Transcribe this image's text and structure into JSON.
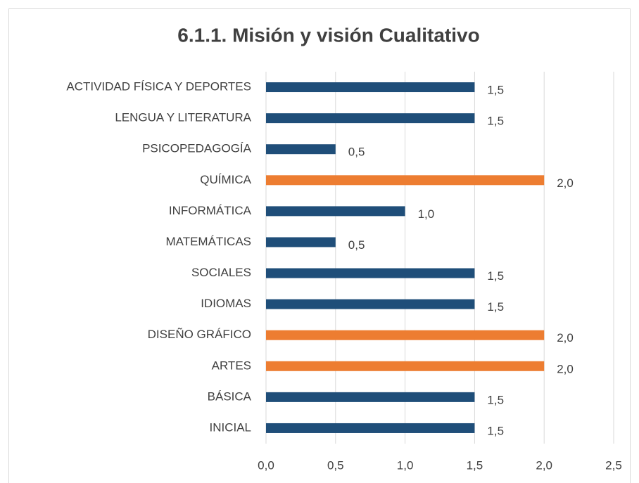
{
  "chart_data": {
    "type": "barh",
    "title": "6.1.1. Misión y visión Cualitativo",
    "categories": [
      "ACTIVIDAD FÍSICA Y DEPORTES",
      "LENGUA Y LITERATURA",
      "PSICOPEDAGOGÍA",
      "QUÍMICA",
      "INFORMÁTICA",
      "MATEMÁTICAS",
      "SOCIALES",
      "IDIOMAS",
      "DISEÑO GRÁFICO",
      "ARTES",
      "BÁSICA",
      "INICIAL"
    ],
    "values": [
      1.5,
      1.5,
      0.5,
      2.0,
      1.0,
      0.5,
      1.5,
      1.5,
      2.0,
      2.0,
      1.5,
      1.5
    ],
    "value_labels": [
      "1,5",
      "1,5",
      "0,5",
      "2,0",
      "1,0",
      "0,5",
      "1,5",
      "1,5",
      "2,0",
      "2,0",
      "1,5",
      "1,5"
    ],
    "colors": [
      "#1f4e79",
      "#1f4e79",
      "#1f4e79",
      "#ed7d31",
      "#1f4e79",
      "#1f4e79",
      "#1f4e79",
      "#1f4e79",
      "#ed7d31",
      "#ed7d31",
      "#1f4e79",
      "#1f4e79"
    ],
    "xlim": [
      0,
      2.5
    ],
    "xticks": [
      {
        "value": 0,
        "label": "0,0"
      },
      {
        "value": 0.5,
        "label": "0,5"
      },
      {
        "value": 1,
        "label": "1,0"
      },
      {
        "value": 1.5,
        "label": "1,5"
      },
      {
        "value": 2,
        "label": "2,0"
      },
      {
        "value": 2.5,
        "label": "2,5"
      }
    ],
    "grid": true
  }
}
